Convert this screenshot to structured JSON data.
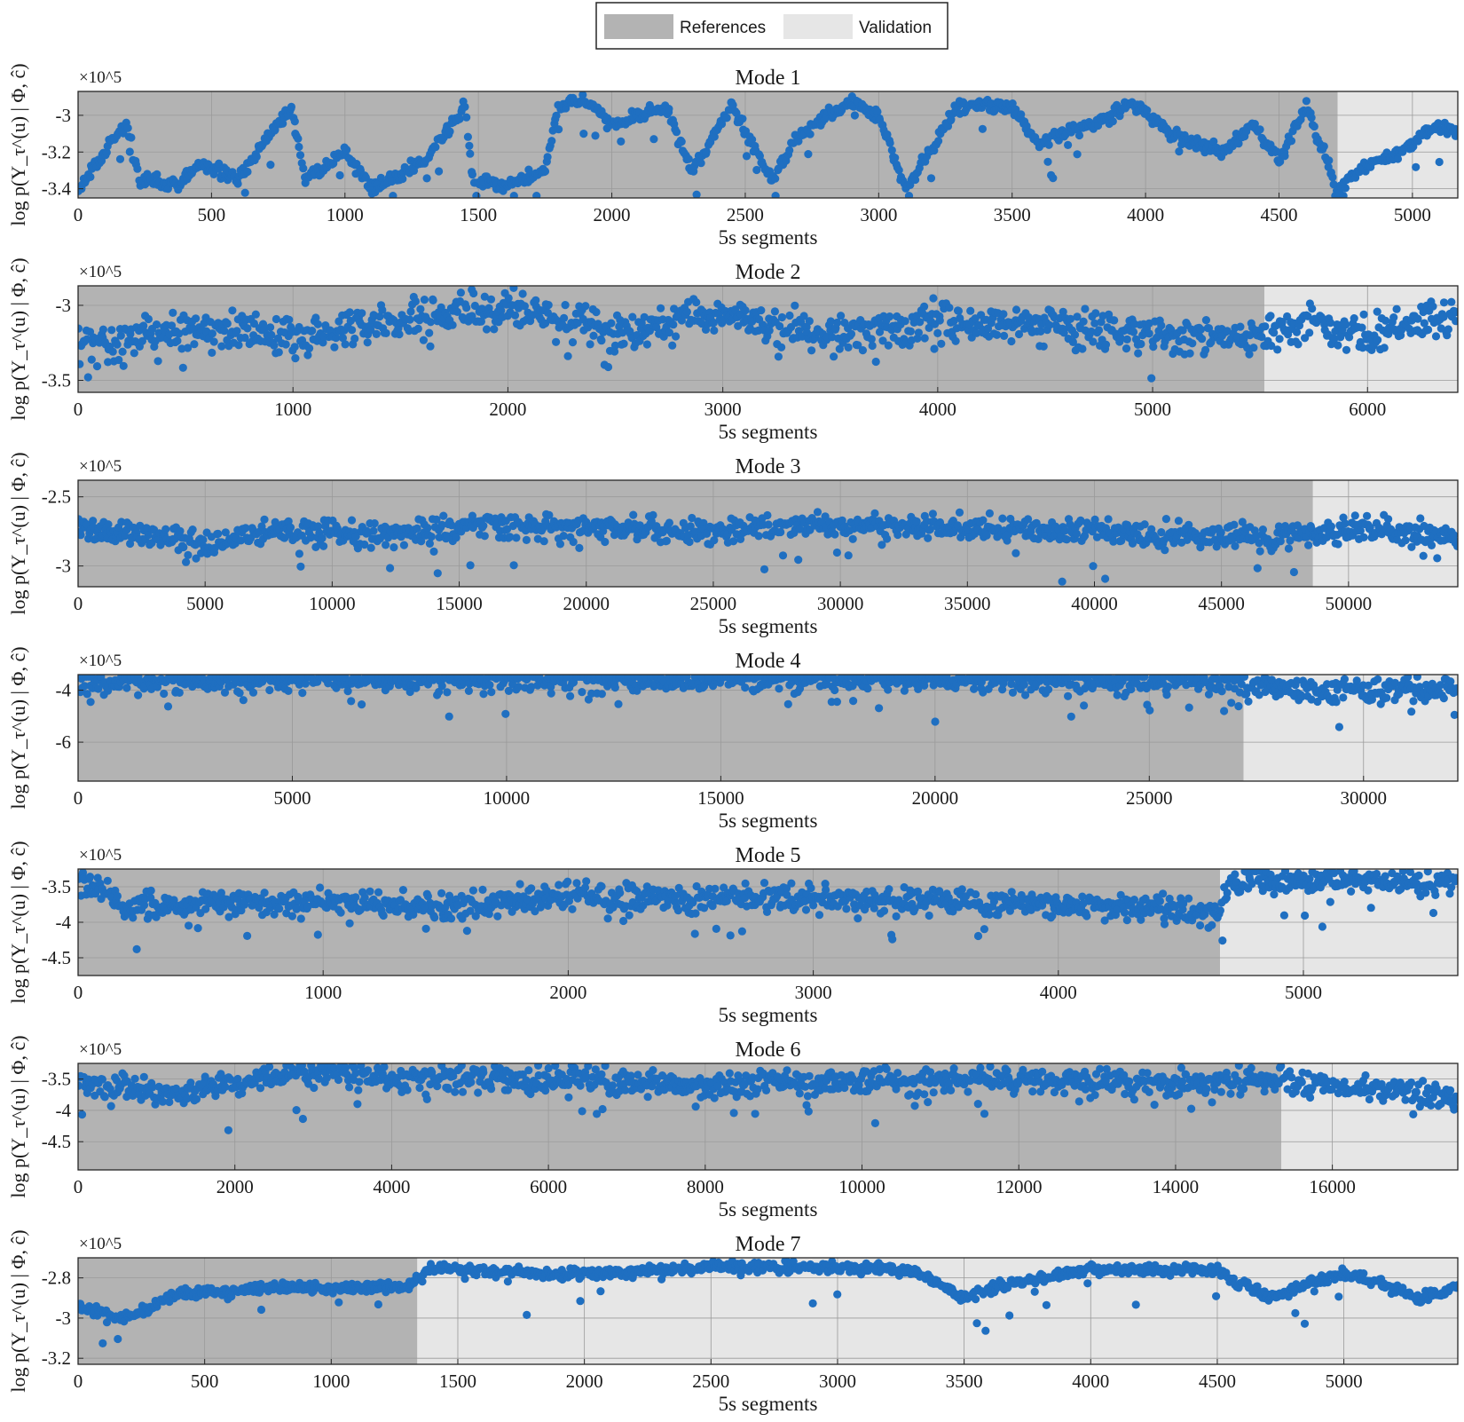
{
  "legend": {
    "references_label": "References",
    "validation_label": "Validation",
    "references_color": "#b3b3b3",
    "validation_color": "#e6e6e6",
    "placement": "top-center"
  },
  "colors": {
    "points": "#1f6fc1",
    "frame": "#262626",
    "grid": "#9a9a9a"
  },
  "chart_data": [
    {
      "type": "scatter",
      "title": "Mode 1",
      "xlabel": "5s segments",
      "ylabel": "log p(Y_τ^(u) | Φ, ĉ)",
      "exponent_label": "×10^5",
      "xlim": [
        0,
        5170
      ],
      "ylim": [
        -3.45,
        -2.87
      ],
      "xticks": [
        0,
        500,
        1000,
        1500,
        2000,
        2500,
        3000,
        3500,
        4000,
        4500,
        5000
      ],
      "yticks": [
        -3.4,
        -3.2,
        -3
      ],
      "yticklabels": [
        "-3.4",
        "-3.2",
        "-3"
      ],
      "grid": true,
      "references_end": 4720,
      "trace": [
        [
          0,
          -3.4
        ],
        [
          150,
          -3.1
        ],
        [
          180,
          -3.05
        ],
        [
          230,
          -3.35
        ],
        [
          380,
          -3.38
        ],
        [
          450,
          -3.25
        ],
        [
          600,
          -3.35
        ],
        [
          700,
          -3.15
        ],
        [
          800,
          -2.95
        ],
        [
          850,
          -3.35
        ],
        [
          1000,
          -3.2
        ],
        [
          1100,
          -3.4
        ],
        [
          1300,
          -3.25
        ],
        [
          1450,
          -2.95
        ],
        [
          1480,
          -3.35
        ],
        [
          1600,
          -3.38
        ],
        [
          1750,
          -3.3
        ],
        [
          1800,
          -2.95
        ],
        [
          1900,
          -2.92
        ],
        [
          2000,
          -3.05
        ],
        [
          2200,
          -2.95
        ],
        [
          2300,
          -3.3
        ],
        [
          2450,
          -2.95
        ],
        [
          2600,
          -3.35
        ],
        [
          2700,
          -3.1
        ],
        [
          2900,
          -2.92
        ],
        [
          3000,
          -3.0
        ],
        [
          3100,
          -3.4
        ],
        [
          3300,
          -2.95
        ],
        [
          3500,
          -2.95
        ],
        [
          3600,
          -3.15
        ],
        [
          3800,
          -3.05
        ],
        [
          3950,
          -2.93
        ],
        [
          4100,
          -3.1
        ],
        [
          4300,
          -3.2
        ],
        [
          4400,
          -3.05
        ],
        [
          4500,
          -3.25
        ],
        [
          4600,
          -2.95
        ],
        [
          4720,
          -3.4
        ],
        [
          4800,
          -3.3
        ],
        [
          4950,
          -3.2
        ],
        [
          5100,
          -3.05
        ],
        [
          5170,
          -3.1
        ]
      ],
      "spread": 0.06
    },
    {
      "type": "scatter",
      "title": "Mode 2",
      "xlabel": "5s segments",
      "ylabel": "log p(Y_τ^(u) | Φ, ĉ)",
      "exponent_label": "×10^5",
      "xlim": [
        0,
        6420
      ],
      "ylim": [
        -3.58,
        -2.87
      ],
      "xticks": [
        0,
        1000,
        2000,
        3000,
        4000,
        5000,
        6000
      ],
      "yticks": [
        -3.5,
        -3
      ],
      "yticklabels": [
        "-3.5",
        "-3"
      ],
      "grid": true,
      "references_end": 5520,
      "trace": [
        [
          0,
          -3.3
        ],
        [
          300,
          -3.2
        ],
        [
          600,
          -3.15
        ],
        [
          1000,
          -3.2
        ],
        [
          1500,
          -3.1
        ],
        [
          2000,
          -3.0
        ],
        [
          2500,
          -3.2
        ],
        [
          3000,
          -3.05
        ],
        [
          3500,
          -3.2
        ],
        [
          4000,
          -3.1
        ],
        [
          4500,
          -3.15
        ],
        [
          5000,
          -3.2
        ],
        [
          5520,
          -3.2
        ],
        [
          5700,
          -3.1
        ],
        [
          5900,
          -3.2
        ],
        [
          6100,
          -3.15
        ],
        [
          6420,
          -3.05
        ]
      ],
      "spread": 0.18
    },
    {
      "type": "scatter",
      "title": "Mode 3",
      "xlabel": "5s segments",
      "ylabel": "log p(Y_τ^(u) | Φ, ĉ)",
      "exponent_label": "×10^5",
      "xlim": [
        0,
        54300
      ],
      "ylim": [
        -3.15,
        -2.38
      ],
      "xticks": [
        0,
        5000,
        10000,
        15000,
        20000,
        25000,
        30000,
        35000,
        40000,
        45000,
        50000
      ],
      "yticks": [
        -3,
        -2.5
      ],
      "yticklabels": [
        "-3",
        "-2.5"
      ],
      "grid": true,
      "references_end": 48600,
      "trace": [
        [
          0,
          -2.72
        ],
        [
          3000,
          -2.78
        ],
        [
          5000,
          -2.85
        ],
        [
          8000,
          -2.75
        ],
        [
          12000,
          -2.78
        ],
        [
          16000,
          -2.7
        ],
        [
          20000,
          -2.72
        ],
        [
          25000,
          -2.75
        ],
        [
          30000,
          -2.7
        ],
        [
          35000,
          -2.72
        ],
        [
          40000,
          -2.75
        ],
        [
          45000,
          -2.8
        ],
        [
          48600,
          -2.78
        ],
        [
          50000,
          -2.72
        ],
        [
          54300,
          -2.78
        ]
      ],
      "spread": 0.12
    },
    {
      "type": "scatter",
      "title": "Mode 4",
      "xlabel": "5s segments",
      "ylabel": "log p(Y_τ^(u) | Φ, ĉ)",
      "exponent_label": "×10^5",
      "xlim": [
        0,
        32200
      ],
      "ylim": [
        -7.5,
        -3.4
      ],
      "xticks": [
        0,
        5000,
        10000,
        15000,
        20000,
        25000,
        30000
      ],
      "yticks": [
        -6,
        -4
      ],
      "yticklabels": [
        "-6",
        "-4"
      ],
      "grid": true,
      "references_end": 27200,
      "trace": [
        [
          0,
          -3.65
        ],
        [
          5000,
          -3.6
        ],
        [
          10000,
          -3.6
        ],
        [
          15000,
          -3.6
        ],
        [
          20000,
          -3.6
        ],
        [
          25000,
          -3.65
        ],
        [
          27200,
          -3.65
        ],
        [
          27300,
          -3.95
        ],
        [
          30000,
          -4.0
        ],
        [
          32200,
          -3.9
        ]
      ],
      "spread": 0.12
    },
    {
      "type": "scatter",
      "title": "Mode 5",
      "xlabel": "5s segments",
      "ylabel": "log p(Y_τ^(u) | Φ, ĉ)",
      "exponent_label": "×10^5",
      "xlim": [
        0,
        5630
      ],
      "ylim": [
        -4.75,
        -3.25
      ],
      "xticks": [
        0,
        1000,
        2000,
        3000,
        4000,
        5000
      ],
      "yticks": [
        -4.5,
        -4,
        -3.5
      ],
      "yticklabels": [
        "-4.5",
        "-4",
        "-3.5"
      ],
      "grid": true,
      "references_end": 4660,
      "trace": [
        [
          0,
          -3.4
        ],
        [
          200,
          -3.75
        ],
        [
          1000,
          -3.72
        ],
        [
          1500,
          -3.8
        ],
        [
          2000,
          -3.62
        ],
        [
          2500,
          -3.68
        ],
        [
          3000,
          -3.65
        ],
        [
          3500,
          -3.72
        ],
        [
          4000,
          -3.75
        ],
        [
          4400,
          -3.8
        ],
        [
          4660,
          -3.9
        ],
        [
          4700,
          -3.4
        ],
        [
          5200,
          -3.4
        ],
        [
          5630,
          -3.45
        ]
      ],
      "spread": 0.12
    },
    {
      "type": "scatter",
      "title": "Mode 6",
      "xlabel": "5s segments",
      "ylabel": "log p(Y_τ^(u) | Φ, ĉ)",
      "exponent_label": "×10^5",
      "xlim": [
        0,
        17600
      ],
      "ylim": [
        -4.95,
        -3.25
      ],
      "xticks": [
        0,
        2000,
        4000,
        6000,
        8000,
        10000,
        12000,
        14000,
        16000
      ],
      "yticks": [
        -4.5,
        -4,
        -3.5
      ],
      "yticklabels": [
        "-4.5",
        "-4",
        "-3.5"
      ],
      "grid": true,
      "references_end": 15350,
      "trace": [
        [
          0,
          -3.6
        ],
        [
          1000,
          -3.7
        ],
        [
          2000,
          -3.6
        ],
        [
          2700,
          -3.4
        ],
        [
          3500,
          -3.45
        ],
        [
          4200,
          -3.5
        ],
        [
          6000,
          -3.5
        ],
        [
          8000,
          -3.6
        ],
        [
          10000,
          -3.55
        ],
        [
          12000,
          -3.5
        ],
        [
          14000,
          -3.55
        ],
        [
          15350,
          -3.5
        ],
        [
          16000,
          -3.6
        ],
        [
          17600,
          -3.8
        ]
      ],
      "spread": 0.12
    },
    {
      "type": "scatter",
      "title": "Mode 7",
      "xlabel": "5s segments",
      "ylabel": "log p(Y_τ^(u) | Φ, ĉ)",
      "exponent_label": "×10^5",
      "xlim": [
        0,
        5450
      ],
      "ylim": [
        -3.23,
        -2.7
      ],
      "xticks": [
        0,
        500,
        1000,
        1500,
        2000,
        2500,
        3000,
        3500,
        4000,
        4500,
        5000
      ],
      "yticks": [
        -3.2,
        -3,
        -2.8
      ],
      "yticklabels": [
        "-3.2",
        "-3",
        "-2.8"
      ],
      "grid": true,
      "references_end": 1340,
      "trace": [
        [
          0,
          -2.95
        ],
        [
          200,
          -3.0
        ],
        [
          400,
          -2.88
        ],
        [
          800,
          -2.85
        ],
        [
          1300,
          -2.85
        ],
        [
          1400,
          -2.75
        ],
        [
          1800,
          -2.78
        ],
        [
          2100,
          -2.78
        ],
        [
          2500,
          -2.74
        ],
        [
          3000,
          -2.75
        ],
        [
          3300,
          -2.76
        ],
        [
          3500,
          -2.9
        ],
        [
          3700,
          -2.82
        ],
        [
          4000,
          -2.76
        ],
        [
          4500,
          -2.76
        ],
        [
          4700,
          -2.9
        ],
        [
          5000,
          -2.77
        ],
        [
          5300,
          -2.9
        ],
        [
          5450,
          -2.85
        ]
      ],
      "spread": 0.05
    }
  ]
}
